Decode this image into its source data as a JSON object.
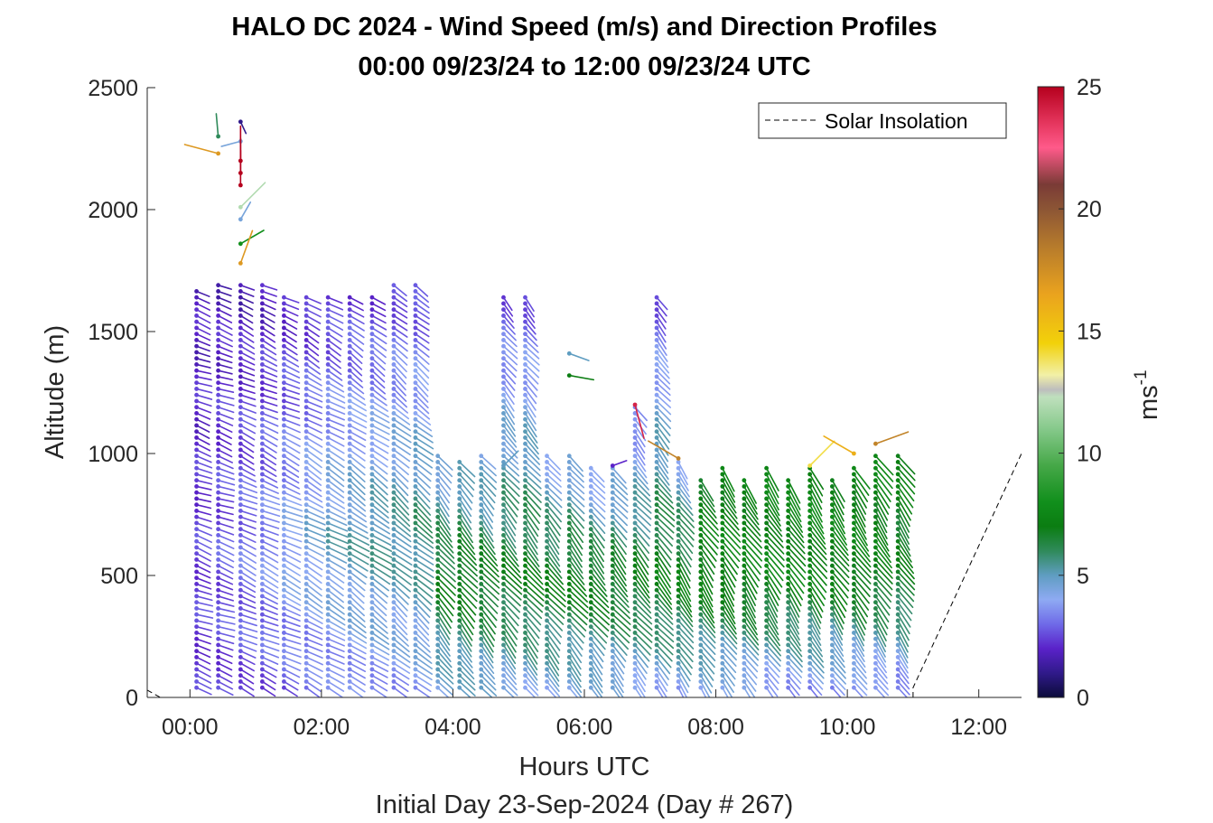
{
  "chart_data": {
    "type": "scatter",
    "title": "HALO DC 2024 - Wind Speed (m/s) and Direction Profiles",
    "subtitle": "00:00 09/23/24 to 12:00 09/23/24  UTC",
    "xlabel": "Hours UTC",
    "xlabel2": "Initial Day 23-Sep-2024 (Day # 267)",
    "ylabel": "Altitude (m)",
    "xlim": [
      -0.65,
      12.65
    ],
    "ylim": [
      0,
      2500
    ],
    "x_ticks": [
      {
        "value": 0,
        "label": "00:00"
      },
      {
        "value": 2,
        "label": "02:00"
      },
      {
        "value": 4,
        "label": "04:00"
      },
      {
        "value": 6,
        "label": "06:00"
      },
      {
        "value": 8,
        "label": "08:00"
      },
      {
        "value": 10,
        "label": "10:00"
      },
      {
        "value": 12,
        "label": "12:00"
      }
    ],
    "y_ticks": [
      {
        "value": 0,
        "label": "0"
      },
      {
        "value": 500,
        "label": "500"
      },
      {
        "value": 1000,
        "label": "1000"
      },
      {
        "value": 1500,
        "label": "1500"
      },
      {
        "value": 2000,
        "label": "2000"
      },
      {
        "value": 2500,
        "label": "2500"
      }
    ],
    "grid": false,
    "legend": {
      "position": "top-right",
      "entries": [
        "Solar Insolation"
      ]
    },
    "colorbar": {
      "label": "ms",
      "label_sup": "-1",
      "range": [
        0,
        25
      ],
      "ticks": [
        {
          "value": 0,
          "label": "0"
        },
        {
          "value": 5,
          "label": "5"
        },
        {
          "value": 10,
          "label": "10"
        },
        {
          "value": 15,
          "label": "15"
        },
        {
          "value": 20,
          "label": "20"
        },
        {
          "value": 25,
          "label": "25"
        }
      ],
      "colormap": [
        {
          "v": 0,
          "c": "#0b0b3a"
        },
        {
          "v": 1,
          "c": "#301a8a"
        },
        {
          "v": 2,
          "c": "#5a22c9"
        },
        {
          "v": 3,
          "c": "#6f6ae8"
        },
        {
          "v": 4,
          "c": "#8eaaf3"
        },
        {
          "v": 5,
          "c": "#5f9dc1"
        },
        {
          "v": 6,
          "c": "#2f8a5a"
        },
        {
          "v": 7,
          "c": "#0b7d12"
        },
        {
          "v": 8,
          "c": "#118f1c"
        },
        {
          "v": 9.5,
          "c": "#46a848"
        },
        {
          "v": 11,
          "c": "#86c98b"
        },
        {
          "v": 12.3,
          "c": "#bfe0bd"
        },
        {
          "v": 12.6,
          "c": "#bdbdbd"
        },
        {
          "v": 13.2,
          "c": "#f2f0a6"
        },
        {
          "v": 14.5,
          "c": "#f2d10a"
        },
        {
          "v": 16.5,
          "c": "#eaa31e"
        },
        {
          "v": 18.5,
          "c": "#b57a2c"
        },
        {
          "v": 20,
          "c": "#8c5535"
        },
        {
          "v": 21,
          "c": "#7a3b36"
        },
        {
          "v": 22.5,
          "c": "#ff5a8a"
        },
        {
          "v": 23.5,
          "c": "#e5365e"
        },
        {
          "v": 25,
          "c": "#b5001d"
        }
      ]
    },
    "solar_insolation": [
      [
        -0.65,
        30
      ],
      [
        -0.45,
        0
      ],
      [
        11.0,
        0
      ],
      [
        11.0,
        40
      ],
      [
        12.65,
        1000
      ]
    ],
    "wind_profiles": [
      {
        "time": 0.1,
        "h0": 40,
        "h1": 1680,
        "dir": 290,
        "s_low": 2.3,
        "s_mid": 2.5,
        "s_high": 1.8,
        "h_peak": 550
      },
      {
        "time": 0.43,
        "h0": 40,
        "h1": 1700,
        "dir": 290,
        "s_low": 2.4,
        "s_mid": 2.8,
        "s_high": 1.8,
        "h_peak": 600
      },
      {
        "time": 0.77,
        "h0": 40,
        "h1": 1690,
        "dir": 295,
        "s_low": 2.5,
        "s_mid": 3.2,
        "s_high": 1.7,
        "h_peak": 600
      },
      {
        "time": 1.1,
        "h0": 40,
        "h1": 1700,
        "dir": 295,
        "s_low": 2.6,
        "s_mid": 3.6,
        "s_high": 1.8,
        "h_peak": 600
      },
      {
        "time": 1.43,
        "h0": 40,
        "h1": 1650,
        "dir": 295,
        "s_low": 2.8,
        "s_mid": 4.2,
        "s_high": 2.0,
        "h_peak": 600
      },
      {
        "time": 1.77,
        "h0": 40,
        "h1": 1640,
        "dir": 300,
        "s_low": 3.0,
        "s_mid": 4.6,
        "s_high": 2.1,
        "h_peak": 650
      },
      {
        "time": 2.1,
        "h0": 40,
        "h1": 1660,
        "dir": 300,
        "s_low": 3.2,
        "s_mid": 5.0,
        "s_high": 2.2,
        "h_peak": 650
      },
      {
        "time": 2.43,
        "h0": 40,
        "h1": 1660,
        "dir": 305,
        "s_low": 3.4,
        "s_mid": 5.2,
        "s_high": 2.3,
        "h_peak": 650
      },
      {
        "time": 2.77,
        "h0": 40,
        "h1": 1650,
        "dir": 305,
        "s_low": 3.5,
        "s_mid": 5.5,
        "s_high": 2.3,
        "h_peak": 650
      },
      {
        "time": 3.1,
        "h0": 40,
        "h1": 1700,
        "dir": 310,
        "s_low": 3.6,
        "s_mid": 5.5,
        "s_high": 2.4,
        "h_peak": 700
      },
      {
        "time": 3.43,
        "h0": 40,
        "h1": 1690,
        "dir": 310,
        "s_low": 3.8,
        "s_mid": 5.8,
        "s_high": 2.4,
        "h_peak": 700
      },
      {
        "time": 3.77,
        "h0": 40,
        "h1": 1000,
        "dir": 320,
        "s_low": 4.2,
        "s_mid": 7.0,
        "s_high": 4.2,
        "h_peak": 500
      },
      {
        "time": 4.1,
        "h0": 40,
        "h1": 980,
        "dir": 320,
        "s_low": 4.5,
        "s_mid": 7.2,
        "s_high": 4.6,
        "h_peak": 500
      },
      {
        "time": 4.43,
        "h0": 40,
        "h1": 1000,
        "dir": 320,
        "s_low": 4.5,
        "s_mid": 7.0,
        "s_high": 4.2,
        "h_peak": 500
      },
      {
        "time": 4.77,
        "h0": 40,
        "h1": 1650,
        "dir": 320,
        "s_low": 4.4,
        "s_mid": 6.8,
        "s_high": 2.6,
        "h_peak": 500
      },
      {
        "time": 5.1,
        "h0": 40,
        "h1": 1650,
        "dir": 320,
        "s_low": 4.3,
        "s_mid": 7.0,
        "s_high": 2.6,
        "h_peak": 500
      },
      {
        "time": 5.43,
        "h0": 40,
        "h1": 1000,
        "dir": 320,
        "s_low": 4.3,
        "s_mid": 7.0,
        "s_high": 4.0,
        "h_peak": 500
      },
      {
        "time": 5.77,
        "h0": 40,
        "h1": 1000,
        "dir": 320,
        "s_low": 4.2,
        "s_mid": 7.2,
        "s_high": 4.2,
        "h_peak": 500
      },
      {
        "time": 6.1,
        "h0": 40,
        "h1": 950,
        "dir": 320,
        "s_low": 4.2,
        "s_mid": 7.2,
        "s_high": 3.5,
        "h_peak": 500
      },
      {
        "time": 6.43,
        "h0": 40,
        "h1": 950,
        "dir": 320,
        "s_low": 4.2,
        "s_mid": 7.0,
        "s_high": 4.0,
        "h_peak": 500
      },
      {
        "time": 6.77,
        "h0": 40,
        "h1": 1200,
        "dir": 320,
        "s_low": 4.0,
        "s_mid": 7.0,
        "s_high": 3.0,
        "h_peak": 500
      },
      {
        "time": 7.1,
        "h0": 40,
        "h1": 1650,
        "dir": 320,
        "s_low": 4.0,
        "s_mid": 7.2,
        "s_high": 2.6,
        "h_peak": 500
      },
      {
        "time": 7.43,
        "h0": 40,
        "h1": 970,
        "dir": 325,
        "s_low": 4.0,
        "s_mid": 7.3,
        "s_high": 4.2,
        "h_peak": 500
      },
      {
        "time": 7.77,
        "h0": 40,
        "h1": 900,
        "dir": 325,
        "s_low": 4.0,
        "s_mid": 7.3,
        "s_high": 7.0,
        "h_peak": 500
      },
      {
        "time": 8.1,
        "h0": 40,
        "h1": 950,
        "dir": 325,
        "s_low": 3.8,
        "s_mid": 7.4,
        "s_high": 7.2,
        "h_peak": 500
      },
      {
        "time": 8.43,
        "h0": 40,
        "h1": 900,
        "dir": 325,
        "s_low": 3.8,
        "s_mid": 7.4,
        "s_high": 7.2,
        "h_peak": 500
      },
      {
        "time": 8.77,
        "h0": 40,
        "h1": 950,
        "dir": 325,
        "s_low": 3.6,
        "s_mid": 7.4,
        "s_high": 7.3,
        "h_peak": 500
      },
      {
        "time": 9.1,
        "h0": 40,
        "h1": 900,
        "dir": 325,
        "s_low": 3.6,
        "s_mid": 7.3,
        "s_high": 7.3,
        "h_peak": 500
      },
      {
        "time": 9.43,
        "h0": 40,
        "h1": 950,
        "dir": 325,
        "s_low": 3.6,
        "s_mid": 7.3,
        "s_high": 7.5,
        "h_peak": 500
      },
      {
        "time": 9.77,
        "h0": 40,
        "h1": 900,
        "dir": 325,
        "s_low": 3.4,
        "s_mid": 7.2,
        "s_high": 7.3,
        "h_peak": 500
      },
      {
        "time": 10.1,
        "h0": 40,
        "h1": 950,
        "dir": 325,
        "s_low": 3.3,
        "s_mid": 7.2,
        "s_high": 7.3,
        "h_peak": 500
      },
      {
        "time": 10.43,
        "h0": 40,
        "h1": 1000,
        "dir": 325,
        "s_low": 3.3,
        "s_mid": 7.0,
        "s_high": 7.3,
        "h_peak": 500
      },
      {
        "time": 10.77,
        "h0": 40,
        "h1": 1000,
        "dir": 325,
        "s_low": 3.2,
        "s_mid": 6.5,
        "s_high": 7.2,
        "h_peak": 450
      }
    ],
    "isolated_vectors": [
      {
        "time": 0.43,
        "alt": 2230,
        "dir": 105,
        "speed": 17
      },
      {
        "time": 0.43,
        "alt": 2300,
        "dir": 175,
        "speed": 6
      },
      {
        "time": 0.77,
        "alt": 2360,
        "dir": 335,
        "speed": 1
      },
      {
        "time": 0.77,
        "alt": 2280,
        "dir": 75,
        "speed": 4.5
      },
      {
        "time": 0.77,
        "alt": 2200,
        "dir": 180,
        "speed": 25
      },
      {
        "time": 0.77,
        "alt": 2150,
        "dir": 180,
        "speed": 25
      },
      {
        "time": 0.77,
        "alt": 2100,
        "dir": 180,
        "speed": 25
      },
      {
        "time": 0.77,
        "alt": 2010,
        "dir": 225,
        "speed": 12
      },
      {
        "time": 0.77,
        "alt": 1960,
        "dir": 210,
        "speed": 4.5
      },
      {
        "time": 0.77,
        "alt": 1860,
        "dir": 240,
        "speed": 8
      },
      {
        "time": 0.77,
        "alt": 1780,
        "dir": 200,
        "speed": 17
      },
      {
        "time": 5.77,
        "alt": 1410,
        "dir": 290,
        "speed": 5
      },
      {
        "time": 5.77,
        "alt": 1320,
        "dir": 280,
        "speed": 7
      },
      {
        "time": 4.77,
        "alt": 950,
        "dir": 225,
        "speed": 5
      },
      {
        "time": 6.43,
        "alt": 950,
        "dir": 250,
        "speed": 2
      },
      {
        "time": 6.77,
        "alt": 1200,
        "dir": 345,
        "speed": 24
      },
      {
        "time": 7.43,
        "alt": 980,
        "dir": 120,
        "speed": 18
      },
      {
        "time": 9.43,
        "alt": 950,
        "dir": 225,
        "speed": 14
      },
      {
        "time": 10.1,
        "alt": 1000,
        "dir": 120,
        "speed": 16
      },
      {
        "time": 10.43,
        "alt": 1040,
        "dir": 250,
        "speed": 18
      }
    ]
  }
}
